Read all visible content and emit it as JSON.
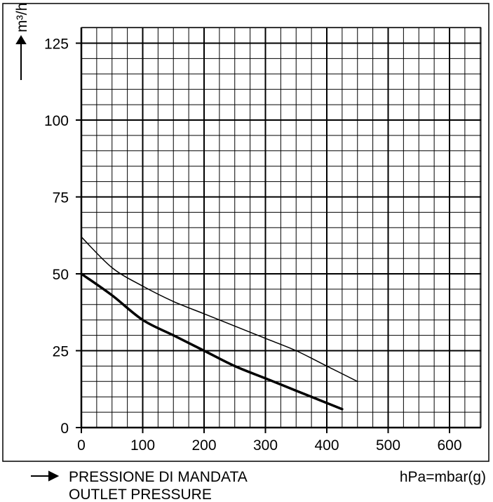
{
  "chart_data": {
    "type": "line",
    "ylabel": "m³/h",
    "xlabel_it": "PRESSIONE DI MANDATA",
    "xlabel_en": "OUTLET PRESSURE",
    "x_unit_note": "hPa=mbar(g)",
    "xlim": [
      0,
      650
    ],
    "ylim": [
      0,
      130
    ],
    "x_ticks": [
      0,
      100,
      200,
      300,
      400,
      500,
      600
    ],
    "y_ticks": [
      0,
      25,
      50,
      75,
      100,
      125
    ],
    "grid": true,
    "series": [
      {
        "color": "#000000",
        "weight": "thin",
        "x": [
          0,
          50,
          100,
          150,
          200,
          250,
          300,
          350,
          400,
          450
        ],
        "y": [
          62,
          52,
          46,
          41,
          37,
          33,
          29,
          25,
          20,
          15
        ]
      },
      {
        "color": "#000000",
        "weight": "thick",
        "x": [
          0,
          50,
          100,
          150,
          200,
          250,
          300,
          350,
          400,
          425
        ],
        "y": [
          50,
          43,
          35,
          30,
          25,
          20,
          16,
          12,
          8,
          6
        ]
      }
    ]
  }
}
